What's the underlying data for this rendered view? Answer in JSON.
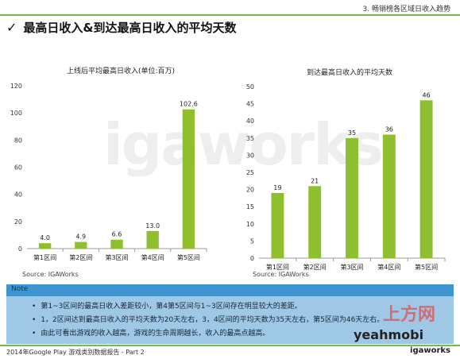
{
  "header": {
    "section": "3. 畅销榜各区域日收入趋势"
  },
  "title": "最高日收入&到达最高日收入的平均天数",
  "watermark": "igaworks",
  "colors": {
    "bar": "#8fbf2f",
    "accent": "#6cc04a",
    "note_head": "#3f95cf",
    "note_body": "#9fc8e6"
  },
  "chart_data": [
    {
      "type": "bar",
      "title": "上线后平均最高日收入(单位:百万)",
      "categories": [
        "第1区间",
        "第2区间",
        "第3区间",
        "第4区间",
        "第5区间"
      ],
      "values": [
        4.0,
        4.9,
        6.6,
        13.0,
        102.6
      ],
      "value_labels": [
        "4.0",
        "4.9",
        "6.6",
        "13.0",
        "102.6"
      ],
      "ylim": [
        0,
        120
      ],
      "yticks": [
        0,
        20,
        40,
        60,
        80,
        100,
        120
      ],
      "source": "Source: IGAWorks",
      "grid": false
    },
    {
      "type": "bar",
      "title": "到达最高日收入的平均天数",
      "categories": [
        "第1区间",
        "第2区间",
        "第3区间",
        "第4区间",
        "第5区间"
      ],
      "values": [
        19,
        21,
        35,
        36,
        46
      ],
      "value_labels": [
        "19",
        "21",
        "35",
        "36",
        "46"
      ],
      "ylim": [
        0,
        50
      ],
      "yticks": [
        0,
        5,
        10,
        15,
        20,
        25,
        30,
        35,
        40,
        45,
        50
      ],
      "source": "Source: IGAWorks",
      "grid": false
    }
  ],
  "note": {
    "label": "Note",
    "bullets": [
      "第1~3区间的最高日收入差距较小，第4第5区间与1~3区间存在明显较大的差距。",
      "1，2区间达到最高日收入的平均天数为20天左右，3，4区间的平均天数为35天左右，第5区间为46天左右。",
      "由此可看出游戏的收入越高，游戏的生命周期越长，收入的最高点越高。"
    ]
  },
  "footer": {
    "left": "2014年Google Play 游戏类别数据报告 - Part 2",
    "right": "igaworks"
  },
  "overlay": {
    "site": "上方网",
    "brand": "yeahmobi"
  }
}
